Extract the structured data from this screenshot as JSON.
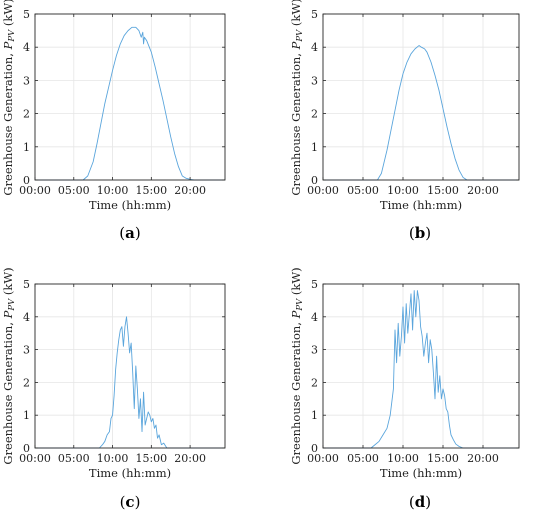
{
  "chart_data": [
    {
      "type": "line",
      "panel_label": "a",
      "xlabel": "Time (hh:mm)",
      "ylabel": "Greenhouse Generation,",
      "ylabel_symbol": "P",
      "ylabel_sub": "PV",
      "ylabel_unit": "(kW)",
      "xlim": [
        0,
        24.5
      ],
      "ylim": [
        0,
        5
      ],
      "xticks": [
        0,
        5,
        10,
        15,
        20
      ],
      "xtick_labels": [
        "00:00",
        "05:00",
        "10:00",
        "15:00",
        "20:00"
      ],
      "yticks": [
        0,
        1,
        2,
        3,
        4,
        5
      ],
      "ytick_labels": [
        "0",
        "1",
        "2",
        "3",
        "4",
        "5"
      ],
      "grid": true,
      "series": [
        {
          "color": "#5aa5dc",
          "x": [
            0,
            6.2,
            6.8,
            7.5,
            8,
            8.5,
            9,
            9.5,
            10,
            10.5,
            11,
            11.5,
            12,
            12.5,
            13,
            13.4,
            13.7,
            13.9,
            14.0,
            14.1,
            14.4,
            15,
            15.5,
            16,
            16.5,
            17,
            17.5,
            18,
            18.5,
            19,
            19.5,
            20,
            20.5,
            24.5
          ],
          "y": [
            0,
            0,
            0.12,
            0.55,
            1.1,
            1.7,
            2.3,
            2.8,
            3.3,
            3.75,
            4.1,
            4.35,
            4.5,
            4.6,
            4.6,
            4.5,
            4.3,
            4.45,
            4.1,
            4.3,
            4.2,
            3.85,
            3.4,
            2.9,
            2.4,
            1.85,
            1.3,
            0.8,
            0.4,
            0.12,
            0.05,
            0.02,
            0,
            0
          ]
        }
      ]
    },
    {
      "type": "line",
      "panel_label": "b",
      "xlabel": "Time (hh:mm)",
      "ylabel": "Greenhouse Generation,",
      "ylabel_symbol": "P",
      "ylabel_sub": "PV",
      "ylabel_unit": "(kW)",
      "xlim": [
        0,
        24.5
      ],
      "ylim": [
        0,
        5
      ],
      "xticks": [
        0,
        5,
        10,
        15,
        20
      ],
      "xtick_labels": [
        "00:00",
        "05:00",
        "10:00",
        "15:00",
        "20:00"
      ],
      "yticks": [
        0,
        1,
        2,
        3,
        4,
        5
      ],
      "ytick_labels": [
        "0",
        "1",
        "2",
        "3",
        "4",
        "5"
      ],
      "grid": true,
      "series": [
        {
          "color": "#5aa5dc",
          "x": [
            0,
            6.8,
            7.3,
            8,
            8.5,
            9,
            9.5,
            10,
            10.5,
            11,
            11.5,
            12,
            12.3,
            12.7,
            13,
            13.5,
            14,
            14.5,
            15,
            15.5,
            16,
            16.5,
            17,
            17.5,
            18,
            24.5
          ],
          "y": [
            0,
            0,
            0.2,
            0.9,
            1.5,
            2.1,
            2.7,
            3.2,
            3.55,
            3.8,
            3.95,
            4.05,
            4.0,
            3.95,
            3.85,
            3.55,
            3.15,
            2.7,
            2.15,
            1.6,
            1.1,
            0.65,
            0.3,
            0.08,
            0,
            0
          ]
        }
      ]
    },
    {
      "type": "line",
      "panel_label": "c",
      "xlabel": "Time (hh:mm)",
      "ylabel": "Greenhouse Generation,",
      "ylabel_symbol": "P",
      "ylabel_sub": "PV",
      "ylabel_unit": "(kW)",
      "xlim": [
        0,
        24.5
      ],
      "ylim": [
        0,
        5
      ],
      "xticks": [
        0,
        5,
        10,
        15,
        20
      ],
      "xtick_labels": [
        "00:00",
        "05:00",
        "10:00",
        "15:00",
        "20:00"
      ],
      "yticks": [
        0,
        1,
        2,
        3,
        4,
        5
      ],
      "ytick_labels": [
        "0",
        "1",
        "2",
        "3",
        "4",
        "5"
      ],
      "grid": true,
      "series": [
        {
          "color": "#5aa5dc",
          "x": [
            0,
            8.3,
            8.7,
            9.0,
            9.3,
            9.6,
            9.8,
            10.0,
            10.2,
            10.4,
            10.6,
            10.8,
            11.0,
            11.2,
            11.4,
            11.6,
            11.8,
            12.0,
            12.2,
            12.4,
            12.6,
            12.8,
            13.0,
            13.2,
            13.4,
            13.6,
            13.8,
            14.0,
            14.2,
            14.4,
            14.6,
            14.8,
            15.0,
            15.2,
            15.4,
            15.6,
            15.8,
            16.0,
            16.3,
            16.6,
            17.0,
            24.5
          ],
          "y": [
            0,
            0,
            0.1,
            0.2,
            0.4,
            0.5,
            0.9,
            1.0,
            1.6,
            2.4,
            2.9,
            3.3,
            3.6,
            3.7,
            3.1,
            3.7,
            4.0,
            3.5,
            2.9,
            3.2,
            2.3,
            1.2,
            2.5,
            1.8,
            0.9,
            1.5,
            0.5,
            1.7,
            0.7,
            0.9,
            1.1,
            1.0,
            0.8,
            0.9,
            0.6,
            0.7,
            0.3,
            0.4,
            0.1,
            0.15,
            0,
            0
          ]
        }
      ]
    },
    {
      "type": "line",
      "panel_label": "d",
      "xlabel": "Time (hh:mm)",
      "ylabel": "Greenhouse Generation,",
      "ylabel_symbol": "P",
      "ylabel_sub": "PV",
      "ylabel_unit": "(kW)",
      "xlim": [
        0,
        24.5
      ],
      "ylim": [
        0,
        5
      ],
      "xticks": [
        0,
        5,
        10,
        15,
        20
      ],
      "xtick_labels": [
        "00:00",
        "05:00",
        "10:00",
        "15:00",
        "20:00"
      ],
      "yticks": [
        0,
        1,
        2,
        3,
        4,
        5
      ],
      "ytick_labels": [
        "0",
        "1",
        "2",
        "3",
        "4",
        "5"
      ],
      "grid": true,
      "series": [
        {
          "color": "#5aa5dc",
          "x": [
            0,
            6.0,
            6.5,
            7.0,
            7.5,
            8.0,
            8.4,
            8.8,
            9.0,
            9.2,
            9.4,
            9.6,
            9.8,
            10.0,
            10.2,
            10.4,
            10.6,
            10.8,
            11.0,
            11.2,
            11.4,
            11.6,
            11.8,
            12.0,
            12.2,
            12.4,
            12.6,
            12.8,
            13.0,
            13.2,
            13.4,
            13.6,
            13.8,
            14.0,
            14.2,
            14.4,
            14.6,
            14.8,
            15.0,
            15.2,
            15.4,
            15.6,
            15.8,
            16.0,
            16.3,
            16.6,
            17.0,
            17.5,
            18.0,
            24.5
          ],
          "y": [
            0,
            0,
            0.1,
            0.2,
            0.4,
            0.6,
            1.0,
            1.8,
            3.6,
            2.6,
            3.8,
            2.8,
            3.4,
            4.3,
            3.2,
            4.4,
            3.5,
            4.1,
            4.7,
            3.6,
            4.8,
            4.0,
            4.8,
            4.5,
            3.7,
            3.4,
            2.8,
            3.2,
            3.5,
            2.6,
            3.3,
            3.0,
            2.3,
            1.5,
            2.8,
            1.7,
            2.2,
            1.5,
            1.8,
            1.6,
            1.2,
            1.1,
            0.7,
            0.4,
            0.25,
            0.12,
            0.05,
            0,
            0,
            0
          ]
        }
      ]
    }
  ]
}
